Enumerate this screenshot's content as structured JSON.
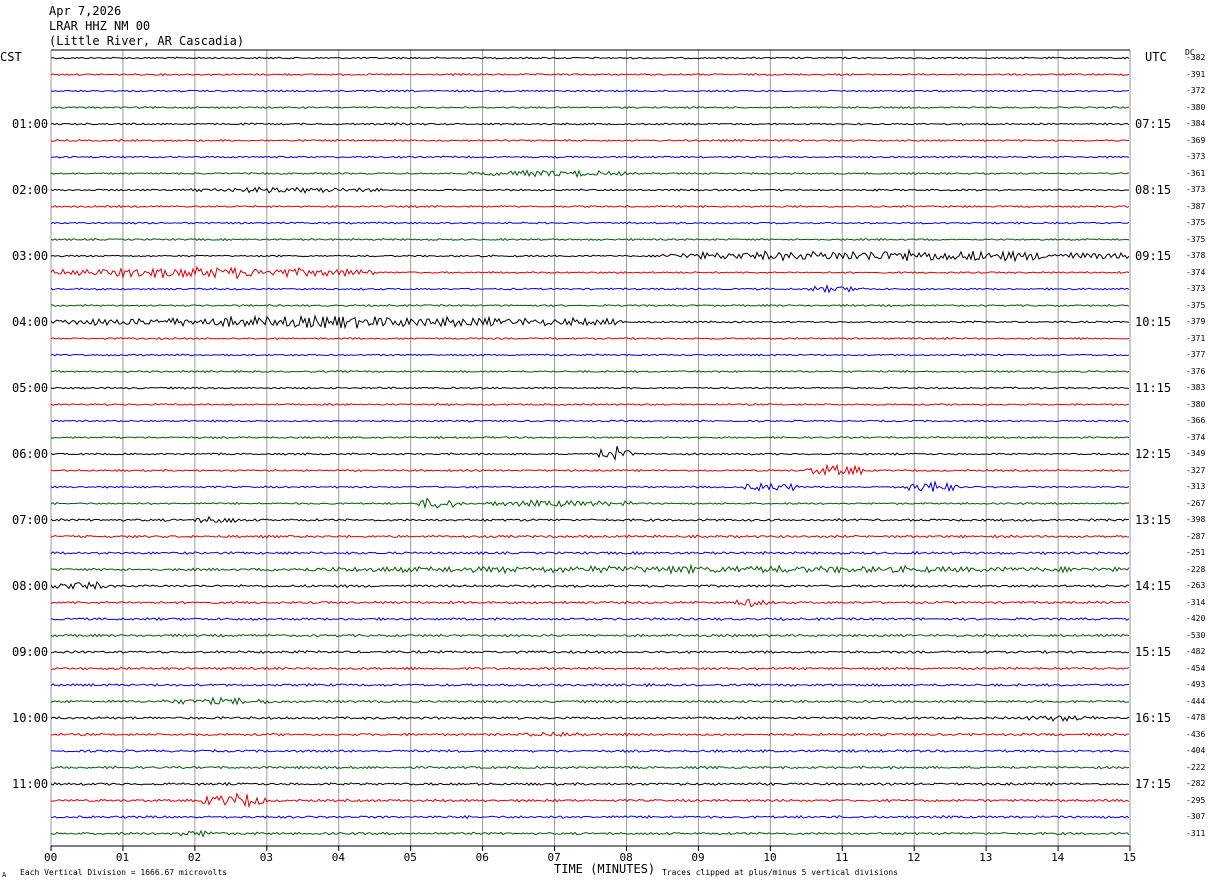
{
  "header": {
    "date": "Apr 7,2026",
    "station": "LRAR HHZ NM 00",
    "location": "(Little River, AR Cascadia)"
  },
  "left_tz": "CST",
  "right_tz": "UTC",
  "dc_label": "DC",
  "footer": {
    "division_note": "Each Vertical Division = 1666.67 microvolts",
    "clip_note": "Traces clipped at plus/minus 5 vertical divisions",
    "corner_mark": "A"
  },
  "chart_data": {
    "type": "line",
    "title": "",
    "xlabel": "TIME (MINUTES)",
    "ylabel": "",
    "xlim": [
      0,
      15
    ],
    "x_ticks": [
      "00",
      "01",
      "02",
      "03",
      "04",
      "05",
      "06",
      "07",
      "08",
      "09",
      "10",
      "11",
      "12",
      "13",
      "14",
      "15"
    ],
    "grid": true,
    "trace_colors": [
      "#000000",
      "#e00000",
      "#0000e0",
      "#006000"
    ],
    "left_hour_labels": [
      "01:00",
      "02:00",
      "03:00",
      "04:00",
      "05:00",
      "06:00",
      "07:00",
      "08:00",
      "09:00",
      "10:00",
      "11:00"
    ],
    "right_hour_labels": [
      "07:15",
      "08:15",
      "09:15",
      "10:15",
      "11:15",
      "12:15",
      "13:15",
      "14:15",
      "15:15",
      "16:15",
      "17:15"
    ],
    "dc_offsets": [
      -382,
      -391,
      -372,
      -380,
      -384,
      -369,
      -373,
      -361,
      -373,
      -387,
      -375,
      -375,
      -378,
      -374,
      -373,
      -375,
      -379,
      -371,
      -377,
      -376,
      -383,
      -380,
      -366,
      -374,
      -349,
      -327,
      -313,
      -267,
      -398,
      -287,
      -251,
      -228,
      -263,
      -314,
      -420,
      -530,
      -482,
      -454,
      -493,
      -444,
      -478,
      -436,
      -404,
      -222,
      -282,
      -295,
      -307,
      -311
    ],
    "events": [
      {
        "trace": 7,
        "start": 5.8,
        "end": 8.0,
        "amp": 1.6
      },
      {
        "trace": 8,
        "start": 1.8,
        "end": 4.6,
        "amp": 1.2
      },
      {
        "trace": 12,
        "start": 8.5,
        "end": 15.0,
        "amp": 3.0
      },
      {
        "trace": 13,
        "start": 0.0,
        "end": 4.5,
        "amp": 3.0
      },
      {
        "trace": 14,
        "start": 10.5,
        "end": 11.3,
        "amp": 1.5
      },
      {
        "trace": 16,
        "start": 0.0,
        "end": 8.0,
        "amp": 3.0
      },
      {
        "trace": 24,
        "start": 7.6,
        "end": 8.1,
        "amp": 4.0
      },
      {
        "trace": 25,
        "start": 10.5,
        "end": 11.3,
        "amp": 3.0
      },
      {
        "trace": 26,
        "start": 9.6,
        "end": 10.4,
        "amp": 2.5
      },
      {
        "trace": 26,
        "start": 11.8,
        "end": 12.6,
        "amp": 3.0
      },
      {
        "trace": 27,
        "start": 5.1,
        "end": 5.7,
        "amp": 3.5
      },
      {
        "trace": 27,
        "start": 6.0,
        "end": 8.2,
        "amp": 1.5
      },
      {
        "trace": 28,
        "start": 2.0,
        "end": 2.6,
        "amp": 2.0
      },
      {
        "trace": 31,
        "start": 3.0,
        "end": 15.0,
        "amp": 1.8
      },
      {
        "trace": 32,
        "start": 0.0,
        "end": 0.8,
        "amp": 2.5
      },
      {
        "trace": 33,
        "start": 9.5,
        "end": 10.0,
        "amp": 2.5
      },
      {
        "trace": 39,
        "start": 1.5,
        "end": 3.2,
        "amp": 1.5
      },
      {
        "trace": 40,
        "start": 13.5,
        "end": 14.5,
        "amp": 1.5
      },
      {
        "trace": 41,
        "start": 6.5,
        "end": 7.5,
        "amp": 1.2
      },
      {
        "trace": 45,
        "start": 2.1,
        "end": 3.0,
        "amp": 4.0
      },
      {
        "trace": 47,
        "start": 1.6,
        "end": 2.4,
        "amp": 1.5
      }
    ]
  }
}
